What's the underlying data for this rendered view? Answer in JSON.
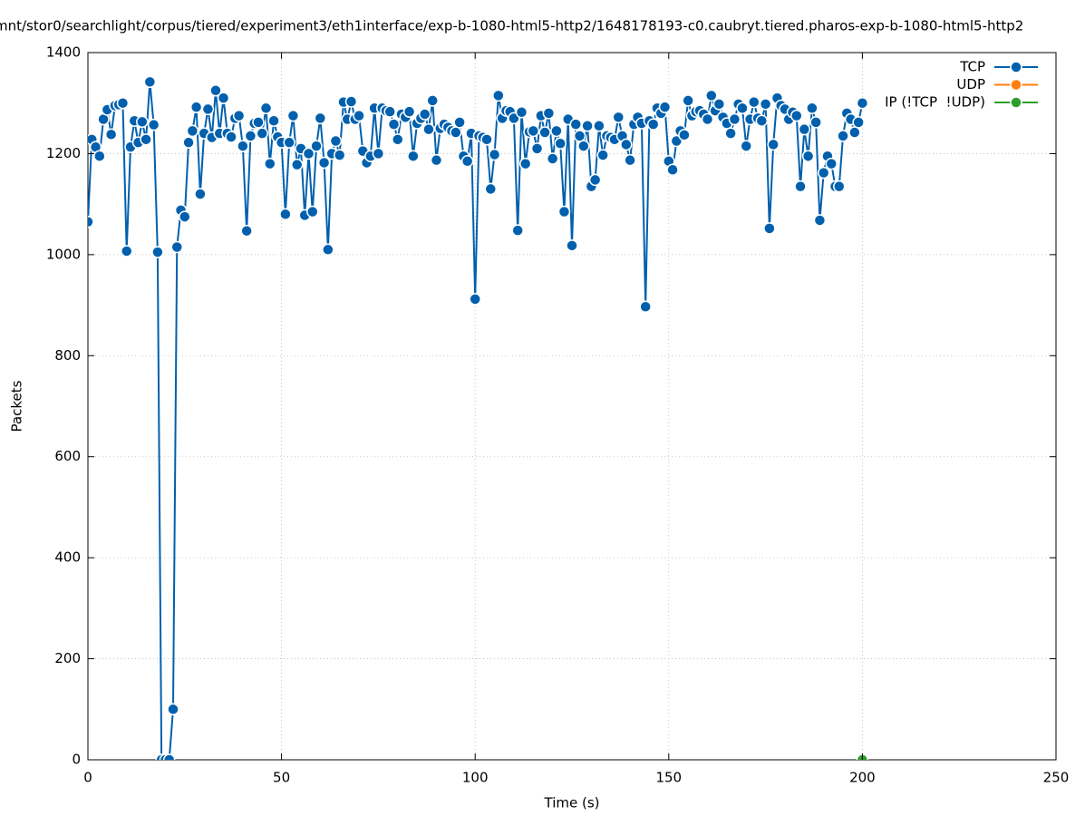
{
  "chart_data": {
    "type": "line",
    "title": "mnt/stor0/searchlight/corpus/tiered/experiment3/eth1interface/exp-b-1080-html5-http2/1648178193-c0.caubryt.tiered.pharos-exp-b-1080-html5-http2",
    "xlabel": "Time (s)",
    "ylabel": "Packets",
    "xlim": [
      0,
      250
    ],
    "xticks": [
      0,
      50,
      100,
      150,
      200,
      250
    ],
    "ylim": [
      0,
      1400
    ],
    "yticks": [
      0,
      200,
      400,
      600,
      800,
      1000,
      1200,
      1400
    ],
    "grid": true,
    "legend": "top-right",
    "series": [
      {
        "name": "TCP",
        "color": "#0060ad",
        "x": [
          0,
          1,
          2,
          3,
          4,
          5,
          6,
          7,
          8,
          9,
          10,
          11,
          12,
          13,
          14,
          15,
          16,
          17,
          18,
          19,
          20,
          21,
          22,
          23,
          24,
          25,
          26,
          27,
          28,
          29,
          30,
          31,
          32,
          33,
          34,
          35,
          36,
          37,
          38,
          39,
          40,
          41,
          42,
          43,
          44,
          45,
          46,
          47,
          48,
          49,
          50,
          51,
          52,
          53,
          54,
          55,
          56,
          57,
          58,
          59,
          60,
          61,
          62,
          63,
          64,
          65,
          66,
          67,
          68,
          69,
          70,
          71,
          72,
          73,
          74,
          75,
          76,
          77,
          78,
          79,
          80,
          81,
          82,
          83,
          84,
          85,
          86,
          87,
          88,
          89,
          90,
          91,
          92,
          93,
          94,
          95,
          96,
          97,
          98,
          99,
          100,
          101,
          102,
          103,
          104,
          105,
          106,
          107,
          108,
          109,
          110,
          111,
          112,
          113,
          114,
          115,
          116,
          117,
          118,
          119,
          120,
          121,
          122,
          123,
          124,
          125,
          126,
          127,
          128,
          129,
          130,
          131,
          132,
          133,
          134,
          135,
          136,
          137,
          138,
          139,
          140,
          141,
          142,
          143,
          144,
          145,
          146,
          147,
          148,
          149,
          150,
          151,
          152,
          153,
          154,
          155,
          156,
          157,
          158,
          159,
          160,
          161,
          162,
          163,
          164,
          165,
          166,
          167,
          168,
          169,
          170,
          171,
          172,
          173,
          174,
          175,
          176,
          177,
          178,
          179,
          180,
          181,
          182,
          183,
          184,
          185,
          186,
          187,
          188,
          189,
          190,
          191,
          192,
          193,
          194,
          195,
          196,
          197,
          198,
          199,
          200
        ],
        "values": [
          1065,
          1228,
          1213,
          1195,
          1268,
          1287,
          1238,
          1295,
          1297,
          1300,
          1007,
          1213,
          1265,
          1222,
          1263,
          1228,
          1342,
          1257,
          1005,
          0,
          0,
          0,
          100,
          1015,
          1088,
          1075,
          1222,
          1245,
          1292,
          1120,
          1240,
          1288,
          1232,
          1325,
          1240,
          1310,
          1240,
          1233,
          1270,
          1275,
          1215,
          1047,
          1235,
          1260,
          1262,
          1240,
          1290,
          1180,
          1265,
          1233,
          1222,
          1080,
          1222,
          1275,
          1178,
          1210,
          1078,
          1200,
          1085,
          1215,
          1270,
          1182,
          1010,
          1200,
          1225,
          1197,
          1302,
          1268,
          1303,
          1268,
          1275,
          1205,
          1182,
          1195,
          1290,
          1200,
          1290,
          1285,
          1283,
          1258,
          1228,
          1278,
          1272,
          1283,
          1195,
          1260,
          1270,
          1278,
          1248,
          1305,
          1187,
          1250,
          1258,
          1252,
          1245,
          1242,
          1262,
          1195,
          1185,
          1240,
          912,
          1235,
          1232,
          1228,
          1130,
          1198,
          1315,
          1270,
          1285,
          1283,
          1270,
          1048,
          1282,
          1180,
          1243,
          1245,
          1210,
          1275,
          1242,
          1280,
          1190,
          1245,
          1220,
          1085,
          1268,
          1018,
          1258,
          1235,
          1215,
          1255,
          1135,
          1148,
          1255,
          1197,
          1235,
          1232,
          1228,
          1272,
          1235,
          1218,
          1187,
          1258,
          1272,
          1260,
          897,
          1265,
          1258,
          1290,
          1280,
          1292,
          1185,
          1168,
          1225,
          1245,
          1237,
          1305,
          1275,
          1283,
          1285,
          1278,
          1268,
          1315,
          1285,
          1298,
          1272,
          1260,
          1240,
          1268,
          1298,
          1290,
          1215,
          1268,
          1302,
          1270,
          1265,
          1298,
          1052,
          1218,
          1310,
          1295,
          1288,
          1268,
          1282,
          1275,
          1135,
          1248,
          1195,
          1290,
          1262,
          1068,
          1162,
          1195,
          1180,
          1135,
          1135,
          1235,
          1280,
          1268,
          1242,
          1262,
          1300
        ]
      },
      {
        "name": "UDP",
        "color": "#ff7f0e",
        "x": [
          200
        ],
        "values": [
          0
        ]
      },
      {
        "name": "IP (!TCP  !UDP)",
        "color": "#2ca02c",
        "x": [
          200
        ],
        "values": [
          0
        ]
      }
    ]
  }
}
